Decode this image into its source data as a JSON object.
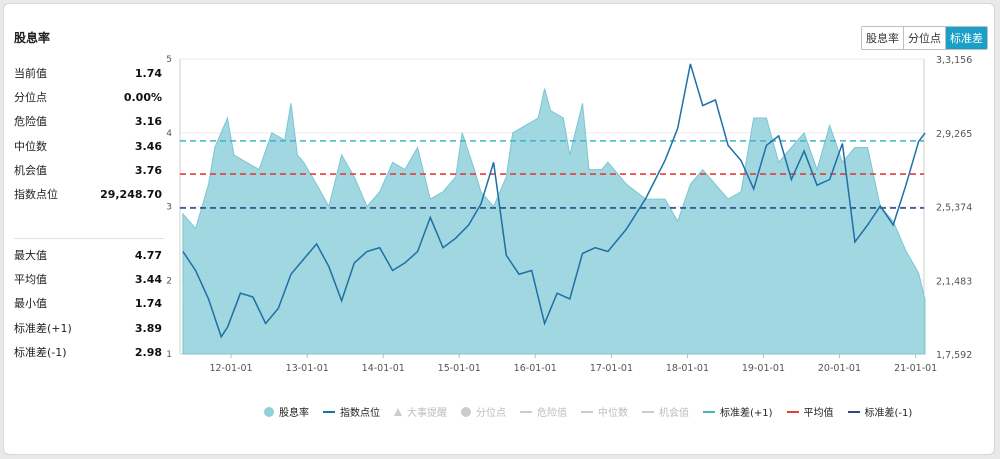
{
  "title": "股息率",
  "tabs": [
    {
      "label": "股息率",
      "active": false
    },
    {
      "label": "分位点",
      "active": false
    },
    {
      "label": "标准差",
      "active": true
    }
  ],
  "stats_top": [
    {
      "label": "当前值",
      "value": "1.74"
    },
    {
      "label": "分位点",
      "value": "0.00%"
    },
    {
      "label": "危险值",
      "value": "3.16"
    },
    {
      "label": "中位数",
      "value": "3.46"
    },
    {
      "label": "机会值",
      "value": "3.76"
    },
    {
      "label": "指数点位",
      "value": "29,248.70"
    }
  ],
  "stats_bottom": [
    {
      "label": "最大值",
      "value": "4.77"
    },
    {
      "label": "平均值",
      "value": "3.44"
    },
    {
      "label": "最小值",
      "value": "1.74"
    },
    {
      "label": "标准差(+1)",
      "value": "3.89"
    },
    {
      "label": "标准差(-1)",
      "value": "2.98"
    }
  ],
  "legend": [
    {
      "label": "股息率",
      "marker": "dot",
      "color": "#8fd0da",
      "enabled": true
    },
    {
      "label": "指数点位",
      "marker": "line",
      "color": "#1e6fa6",
      "enabled": true
    },
    {
      "label": "大事提醒",
      "marker": "triangle",
      "color": "#cccccc",
      "enabled": false
    },
    {
      "label": "分位点",
      "marker": "dot",
      "color": "#cccccc",
      "enabled": false
    },
    {
      "label": "危险值",
      "marker": "dash",
      "color": "#cccccc",
      "enabled": false
    },
    {
      "label": "中位数",
      "marker": "dash",
      "color": "#cccccc",
      "enabled": false
    },
    {
      "label": "机会值",
      "marker": "dash",
      "color": "#cccccc",
      "enabled": false
    },
    {
      "label": "标准差(+1)",
      "marker": "dash",
      "color": "#3fb6c2",
      "enabled": true
    },
    {
      "label": "平均值",
      "marker": "dash",
      "color": "#e0403a",
      "enabled": true
    },
    {
      "label": "标准差(-1)",
      "marker": "dash",
      "color": "#2e4a86",
      "enabled": true
    }
  ],
  "chart_data": {
    "type": "area",
    "x_tick_labels": [
      "12-01-01",
      "13-01-01",
      "14-01-01",
      "15-01-01",
      "16-01-01",
      "17-01-01",
      "18-01-01",
      "19-01-01",
      "20-01-01",
      "21-01-01"
    ],
    "x_range": [
      "2011-05-01",
      "2021-02-10"
    ],
    "y_left": {
      "ticks": [
        "1",
        "2",
        "3",
        "4",
        "5"
      ],
      "range": [
        1,
        5
      ]
    },
    "y_right": {
      "ticks": [
        "1,7,592",
        "2,1,483",
        "2,5,374",
        "2,9,265",
        "3,3,156"
      ],
      "range": [
        17592,
        33156
      ]
    },
    "reference_lines": [
      {
        "name": "标准差(+1)",
        "value": 3.89,
        "color": "#3fb6c2"
      },
      {
        "name": "平均值",
        "value": 3.44,
        "color": "#e0403a"
      },
      {
        "name": "标准差(-1)",
        "value": 2.98,
        "color": "#2e4a86"
      }
    ],
    "series": [
      {
        "name": "股息率",
        "axis": "left",
        "kind": "area",
        "color": "#8fd0da",
        "points": [
          [
            "2011-05",
            2.9
          ],
          [
            "2011-07",
            2.7
          ],
          [
            "2011-09",
            3.3
          ],
          [
            "2011-10",
            3.8
          ],
          [
            "2011-12",
            4.2
          ],
          [
            "2012-01",
            3.7
          ],
          [
            "2012-03",
            3.6
          ],
          [
            "2012-05",
            3.5
          ],
          [
            "2012-07",
            4.0
          ],
          [
            "2012-09",
            3.9
          ],
          [
            "2012-10",
            4.4
          ],
          [
            "2012-11",
            3.7
          ],
          [
            "2012-12",
            3.6
          ],
          [
            "2013-02",
            3.3
          ],
          [
            "2013-04",
            3.0
          ],
          [
            "2013-06",
            3.7
          ],
          [
            "2013-08",
            3.4
          ],
          [
            "2013-10",
            3.0
          ],
          [
            "2013-12",
            3.2
          ],
          [
            "2014-02",
            3.6
          ],
          [
            "2014-04",
            3.5
          ],
          [
            "2014-06",
            3.8
          ],
          [
            "2014-08",
            3.1
          ],
          [
            "2014-10",
            3.2
          ],
          [
            "2014-12",
            3.4
          ],
          [
            "2015-01",
            4.0
          ],
          [
            "2015-03",
            3.5
          ],
          [
            "2015-04",
            3.2
          ],
          [
            "2015-06",
            3.0
          ],
          [
            "2015-08",
            3.4
          ],
          [
            "2015-09",
            4.0
          ],
          [
            "2015-11",
            4.1
          ],
          [
            "2016-01",
            4.2
          ],
          [
            "2016-02",
            4.6
          ],
          [
            "2016-03",
            4.3
          ],
          [
            "2016-05",
            4.2
          ],
          [
            "2016-06",
            3.7
          ],
          [
            "2016-08",
            4.4
          ],
          [
            "2016-09",
            3.5
          ],
          [
            "2016-11",
            3.5
          ],
          [
            "2016-12",
            3.6
          ],
          [
            "2017-03",
            3.3
          ],
          [
            "2017-06",
            3.1
          ],
          [
            "2017-09",
            3.1
          ],
          [
            "2017-11",
            2.8
          ],
          [
            "2018-01",
            3.3
          ],
          [
            "2018-03",
            3.5
          ],
          [
            "2018-05",
            3.3
          ],
          [
            "2018-07",
            3.1
          ],
          [
            "2018-09",
            3.2
          ],
          [
            "2018-11",
            4.2
          ],
          [
            "2019-01",
            4.2
          ],
          [
            "2019-03",
            3.6
          ],
          [
            "2019-05",
            3.8
          ],
          [
            "2019-07",
            4.0
          ],
          [
            "2019-09",
            3.5
          ],
          [
            "2019-11",
            4.1
          ],
          [
            "2020-01",
            3.6
          ],
          [
            "2020-03",
            3.8
          ],
          [
            "2020-05",
            3.8
          ],
          [
            "2020-07",
            3.0
          ],
          [
            "2020-09",
            2.8
          ],
          [
            "2020-11",
            2.4
          ],
          [
            "2021-01",
            2.1
          ],
          [
            "2021-02",
            1.74
          ]
        ]
      },
      {
        "name": "指数点位",
        "axis": "right",
        "kind": "line",
        "color": "#1e6fa6",
        "points": [
          [
            "2011-05",
            23000
          ],
          [
            "2011-07",
            22000
          ],
          [
            "2011-09",
            20500
          ],
          [
            "2011-11",
            18500
          ],
          [
            "2011-12",
            19000
          ],
          [
            "2012-02",
            20800
          ],
          [
            "2012-04",
            20600
          ],
          [
            "2012-06",
            19200
          ],
          [
            "2012-08",
            20000
          ],
          [
            "2012-10",
            21800
          ],
          [
            "2012-12",
            22600
          ],
          [
            "2013-02",
            23400
          ],
          [
            "2013-04",
            22200
          ],
          [
            "2013-06",
            20400
          ],
          [
            "2013-08",
            22400
          ],
          [
            "2013-10",
            23000
          ],
          [
            "2013-12",
            23200
          ],
          [
            "2014-02",
            22000
          ],
          [
            "2014-04",
            22400
          ],
          [
            "2014-06",
            23000
          ],
          [
            "2014-08",
            24800
          ],
          [
            "2014-10",
            23200
          ],
          [
            "2014-12",
            23700
          ],
          [
            "2015-02",
            24400
          ],
          [
            "2015-04",
            25500
          ],
          [
            "2015-06",
            27700
          ],
          [
            "2015-08",
            22800
          ],
          [
            "2015-10",
            21800
          ],
          [
            "2015-12",
            22000
          ],
          [
            "2016-02",
            19200
          ],
          [
            "2016-04",
            20800
          ],
          [
            "2016-06",
            20500
          ],
          [
            "2016-08",
            22900
          ],
          [
            "2016-10",
            23200
          ],
          [
            "2016-12",
            23000
          ],
          [
            "2017-03",
            24200
          ],
          [
            "2017-06",
            25800
          ],
          [
            "2017-09",
            27800
          ],
          [
            "2017-11",
            29500
          ],
          [
            "2018-01",
            32900
          ],
          [
            "2018-03",
            30700
          ],
          [
            "2018-05",
            31000
          ],
          [
            "2018-07",
            28600
          ],
          [
            "2018-09",
            27800
          ],
          [
            "2018-11",
            26300
          ],
          [
            "2019-01",
            28600
          ],
          [
            "2019-03",
            29100
          ],
          [
            "2019-05",
            26800
          ],
          [
            "2019-07",
            28300
          ],
          [
            "2019-09",
            26500
          ],
          [
            "2019-11",
            26800
          ],
          [
            "2020-01",
            28700
          ],
          [
            "2020-03",
            23500
          ],
          [
            "2020-05",
            24400
          ],
          [
            "2020-07",
            25400
          ],
          [
            "2020-09",
            24400
          ],
          [
            "2020-11",
            26500
          ],
          [
            "2021-01",
            28800
          ],
          [
            "2021-02",
            29249
          ]
        ]
      }
    ]
  }
}
